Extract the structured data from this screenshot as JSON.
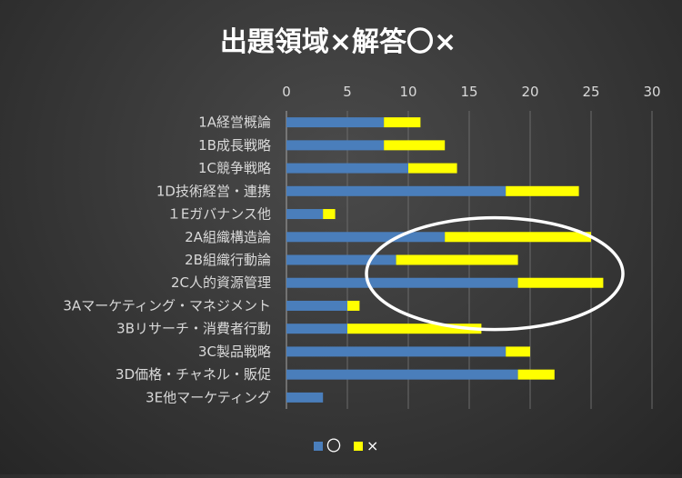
{
  "chart_data": {
    "type": "bar",
    "orientation": "horizontal",
    "stacked": true,
    "title": "出題領域×解答〇×",
    "categories": [
      "1A経営概論",
      "1B成長戦略",
      "1C競争戦略",
      "1D技術経営・連携",
      "１Eガバナンス他",
      "2A組織構造論",
      "2B組織行動論",
      "2C人的資源管理",
      "3Aマーケティング・マネジメント",
      "3Bリサーチ・消費者行動",
      "3C製品戦略",
      "3D価格・チャネル・販促",
      "3E他マーケティング"
    ],
    "series": [
      {
        "name": "〇",
        "color": "#4a7ebb",
        "values": [
          8,
          8,
          10,
          18,
          3,
          13,
          9,
          19,
          5,
          5,
          18,
          19,
          3
        ]
      },
      {
        "name": "×",
        "color": "#ffff00",
        "values": [
          3,
          5,
          4,
          6,
          1,
          12,
          10,
          7,
          1,
          11,
          2,
          3,
          0
        ]
      }
    ],
    "xlim": [
      0,
      30
    ],
    "xticks": [
      0,
      5,
      10,
      15,
      20,
      25,
      30
    ],
    "grid": true,
    "legend_position": "bottom",
    "annotation": "ellipse highlighting 2A–2C rows"
  }
}
